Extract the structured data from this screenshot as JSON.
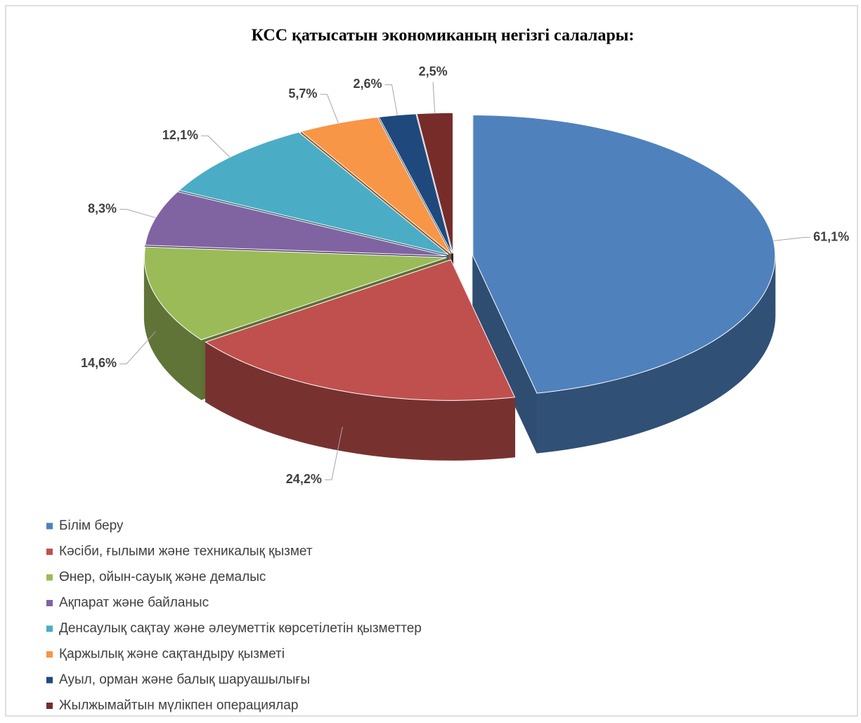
{
  "chart_data": {
    "type": "pie3d",
    "title": "КСС қатысатын экономиканың негізгі салалары:",
    "categories": [
      "Білім беру",
      "Кәсіби, ғылыми және техникалық қызмет",
      "Өнер, ойын-сауық және демалыс",
      "Ақпарат және байланыс",
      "Денсаулық сақтау және әлеуметтік көрсетілетін қызметтер",
      "Қаржылық және сақтандыру қызметі",
      "Ауыл,  орман және балық шаруашылығы",
      "Жылжымайтын мүлікпен операциялар"
    ],
    "values": [
      61.1,
      24.2,
      14.6,
      8.3,
      12.1,
      5.7,
      2.6,
      2.5
    ],
    "value_labels": [
      "61,1%",
      "24,2%",
      "14,6%",
      "8,3%",
      "12,1%",
      "5,7%",
      "2,6%",
      "2,5%"
    ],
    "colors": [
      "#4f81bd",
      "#c0504d",
      "#9bbb59",
      "#8064a2",
      "#4bacc6",
      "#f79646",
      "#1f497d",
      "#772c2a"
    ],
    "legend": "bottom-left"
  }
}
